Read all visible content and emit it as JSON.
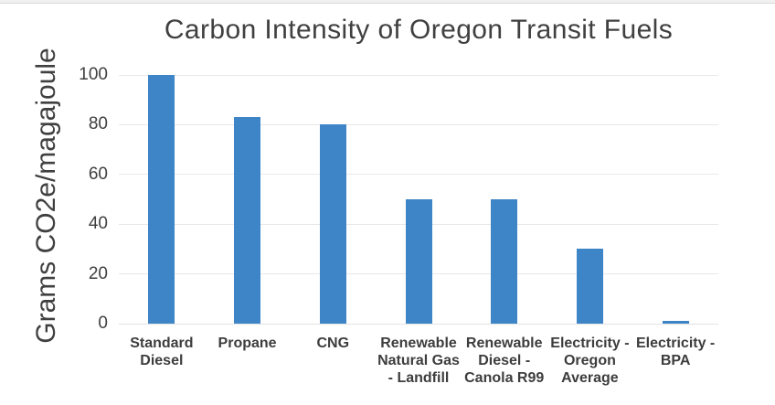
{
  "window": {
    "background": "#ffffff",
    "top_strip_color": "#f1f1f2",
    "top_strip_edge_color": "#d9d9d9"
  },
  "chart_data": {
    "type": "bar",
    "title": "Carbon Intensity of Oregon Transit Fuels",
    "ylabel": "Grams CO2e/magajoule",
    "xlabel": "",
    "categories": [
      "Standard\nDiesel",
      "Propane",
      "CNG",
      "Renewable\nNatural Gas\n- Landfill",
      "Renewable\nDiesel -\nCanola R99",
      "Electricity -\nOregon\nAverage",
      "Electricity -\nBPA"
    ],
    "values": [
      100,
      83,
      80,
      50,
      50,
      30,
      1
    ],
    "ylim": [
      0,
      100
    ],
    "yticks": [
      0,
      20,
      40,
      60,
      80,
      100
    ],
    "grid": true,
    "legend_position": "none",
    "bar_color": "#3d85c6",
    "gridline_color": "#e8e8e8",
    "baseline_color": "#e2e2e2",
    "title_color": "#404040",
    "axis_text_color": "#404040"
  }
}
